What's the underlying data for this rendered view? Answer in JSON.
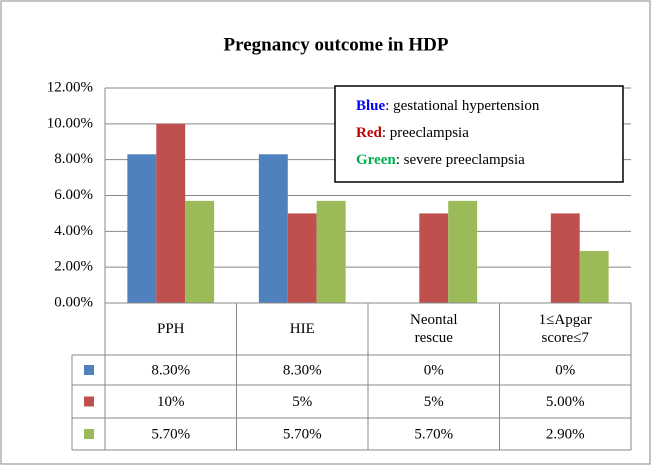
{
  "chart_data": {
    "type": "bar",
    "title": "Pregnancy outcome in HDP",
    "categories": [
      "PPH",
      "HIE",
      "Neontal rescue",
      "1≤Apgar score≤7"
    ],
    "series": [
      {
        "color": "#4f81bd",
        "values": [
          8.3,
          8.3,
          0,
          0
        ],
        "value_labels": [
          "8.30%",
          "8.30%",
          "0%",
          "0%"
        ]
      },
      {
        "color": "#c0504d",
        "values": [
          10,
          5,
          5,
          5
        ],
        "value_labels": [
          "10%",
          "5%",
          "5%",
          "5.00%"
        ]
      },
      {
        "color": "#9bbb59",
        "values": [
          5.7,
          5.7,
          5.7,
          2.9
        ],
        "value_labels": [
          "5.70%",
          "5.70%",
          "5.70%",
          "2.90%"
        ]
      }
    ],
    "ylim": [
      0,
      12
    ],
    "yticks": [
      {
        "value": 0,
        "label": "0.00%"
      },
      {
        "value": 2,
        "label": "2.00%"
      },
      {
        "value": 4,
        "label": "4.00%"
      },
      {
        "value": 6,
        "label": "6.00%"
      },
      {
        "value": 8,
        "label": "8.00%"
      },
      {
        "value": 10,
        "label": "10.00%"
      },
      {
        "value": 12,
        "label": "12.00%"
      }
    ],
    "grid": true,
    "annotations": [
      {
        "key": "Blue",
        "text": ": gestational hypertension",
        "color": "#0000ff"
      },
      {
        "key": "Red",
        "text": ": preeclampsia",
        "color": "#c00000"
      },
      {
        "key": "Green",
        "text": ": severe preeclampsia",
        "color": "#00b050"
      }
    ]
  }
}
